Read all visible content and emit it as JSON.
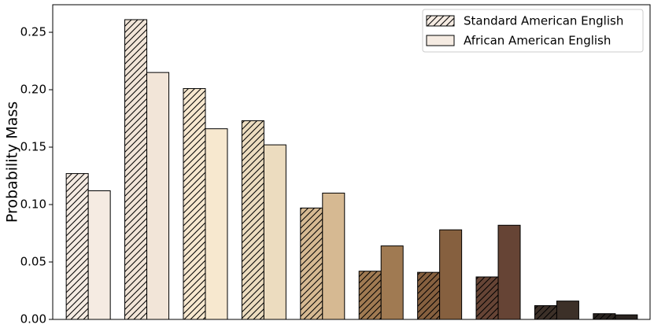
{
  "chart_data": {
    "type": "bar",
    "y_label": "Probability Mass",
    "categories": [
      null,
      null,
      null,
      null,
      null,
      null,
      null,
      null,
      null,
      null
    ],
    "series": [
      {
        "name": "Standard American English",
        "color": "#f5ebe2",
        "hatch": true,
        "colors": [
          "#f5ebe2",
          "#f2e5d8",
          "#f7e8cf",
          "#ecdcbf",
          "#d6b992",
          "#a07a52",
          "#86603f",
          "#664435",
          "#3c3028",
          "#2a2420"
        ],
        "values": [
          0.127,
          0.261,
          0.201,
          0.173,
          0.097,
          0.042,
          0.041,
          0.037,
          0.012,
          0.005
        ]
      },
      {
        "name": "African American English",
        "color": "#f5ebe2",
        "hatch": false,
        "colors": [
          "#f5ebe2",
          "#f2e5d8",
          "#f7e8cf",
          "#ecdcbf",
          "#d6b992",
          "#a07a52",
          "#86603f",
          "#664435",
          "#3c3028",
          "#2a2420"
        ],
        "values": [
          0.112,
          0.215,
          0.166,
          0.152,
          0.11,
          0.064,
          0.078,
          0.082,
          0.016,
          0.004
        ]
      }
    ],
    "ylim": [
      0,
      0.274
    ],
    "yticks": [
      {
        "value": 0,
        "label": "0.00"
      },
      {
        "value": 0.05,
        "label": "0.05"
      },
      {
        "value": 0.1,
        "label": "0.10"
      },
      {
        "value": 0.15,
        "label": "0.15"
      },
      {
        "value": 0.2,
        "label": "0.20"
      },
      {
        "value": 0.25,
        "label": "0.25"
      }
    ],
    "legend": "upper right",
    "grid": false
  }
}
